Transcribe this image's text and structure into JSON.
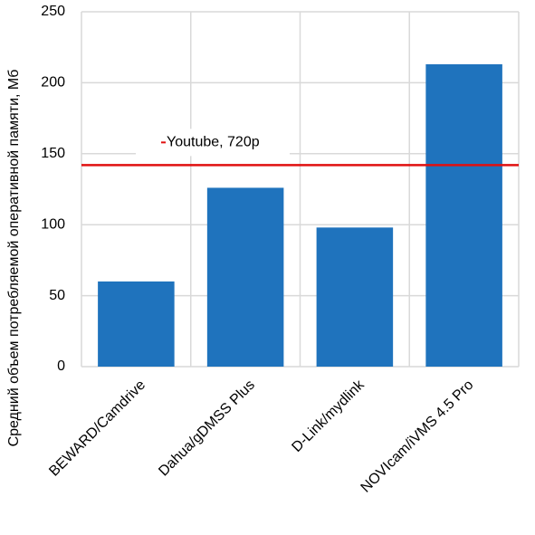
{
  "chart_data": {
    "type": "bar",
    "y_label": "Средний объем потребляемой оперативной памяти, Мб",
    "categories": [
      "BEWARD/Camdrive",
      "Dahua/gDMSS Plus",
      "D-Link/mydlink",
      "NOVIcam/iVMS 4.5 Pro"
    ],
    "values": [
      60,
      126,
      98,
      213
    ],
    "color": "#1f73bd",
    "ylim": [
      0,
      250
    ],
    "yticks": [
      0,
      50,
      100,
      150,
      200,
      250
    ],
    "grid": true,
    "reference_line": {
      "name": "Youtube, 720p",
      "value": 142,
      "color": "#e01010"
    }
  }
}
